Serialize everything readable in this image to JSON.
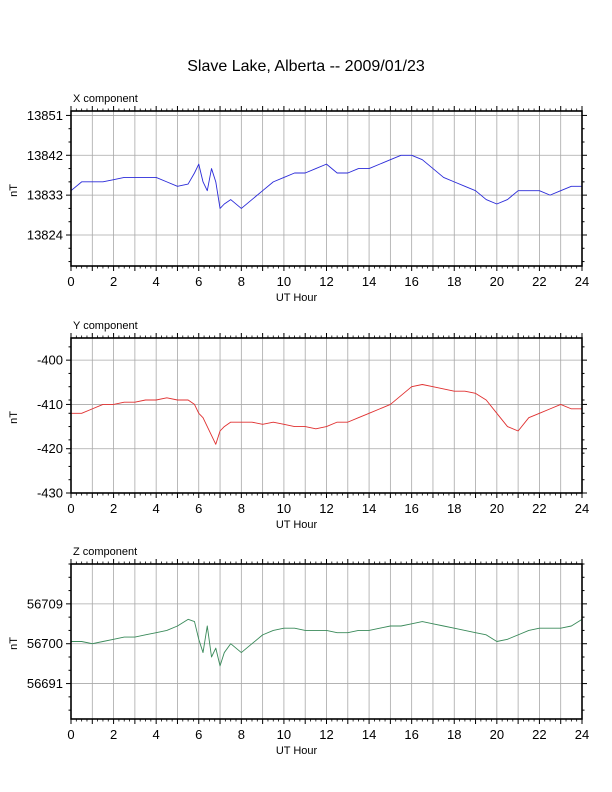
{
  "title": "Slave Lake, Alberta -- 2009/01/23",
  "chart_data": [
    {
      "type": "line",
      "panel_label": "X component",
      "xlabel": "UT Hour",
      "ylabel": "nT",
      "xlim": [
        0,
        24
      ],
      "ylim": [
        13817,
        13852
      ],
      "xticks": [
        0,
        2,
        4,
        6,
        8,
        10,
        12,
        14,
        16,
        18,
        20,
        22,
        24
      ],
      "yticks": [
        13824,
        13833,
        13842,
        13851
      ],
      "grid": true,
      "color": "#2b2bd9",
      "x": [
        0,
        0.5,
        1,
        1.5,
        2,
        2.5,
        3,
        3.5,
        4,
        4.5,
        5,
        5.5,
        5.8,
        6,
        6.2,
        6.4,
        6.6,
        6.8,
        7,
        7.2,
        7.5,
        8,
        8.5,
        9,
        9.5,
        10,
        10.5,
        11,
        11.5,
        12,
        12.5,
        13,
        13.5,
        14,
        14.5,
        15,
        15.5,
        16,
        16.5,
        17,
        17.5,
        18,
        18.5,
        19,
        19.5,
        20,
        20.5,
        21,
        21.5,
        22,
        22.5,
        23,
        23.5,
        24
      ],
      "y": [
        13834,
        13836,
        13836,
        13836,
        13836.5,
        13837,
        13837,
        13837,
        13837,
        13836,
        13835,
        13835.5,
        13838,
        13840,
        13836,
        13834,
        13839,
        13836,
        13830,
        13831,
        13832,
        13830,
        13832,
        13834,
        13836,
        13837,
        13838,
        13838,
        13839,
        13840,
        13838,
        13838,
        13839,
        13839,
        13840,
        13841,
        13842,
        13842,
        13841,
        13839,
        13837,
        13836,
        13835,
        13834,
        13832,
        13831,
        13832,
        13834,
        13834,
        13834,
        13833,
        13834,
        13835,
        13835
      ]
    },
    {
      "type": "line",
      "panel_label": "Y component",
      "xlabel": "UT Hour",
      "ylabel": "nT",
      "xlim": [
        0,
        24
      ],
      "ylim": [
        -430,
        -395
      ],
      "xticks": [
        0,
        2,
        4,
        6,
        8,
        10,
        12,
        14,
        16,
        18,
        20,
        22,
        24
      ],
      "yticks": [
        -430,
        -420,
        -410,
        -400
      ],
      "grid": true,
      "color": "#e03030",
      "x": [
        0,
        0.5,
        1,
        1.5,
        2,
        2.5,
        3,
        3.5,
        4,
        4.5,
        5,
        5.5,
        5.8,
        6,
        6.2,
        6.4,
        6.6,
        6.8,
        7,
        7.2,
        7.5,
        8,
        8.5,
        9,
        9.5,
        10,
        10.5,
        11,
        11.5,
        12,
        12.5,
        13,
        13.5,
        14,
        14.5,
        15,
        15.5,
        16,
        16.5,
        17,
        17.5,
        18,
        18.5,
        19,
        19.5,
        20,
        20.5,
        21,
        21.5,
        22,
        22.5,
        23,
        23.5,
        24
      ],
      "y": [
        -412,
        -412,
        -411,
        -410,
        -410,
        -409.5,
        -409.5,
        -409,
        -409,
        -408.5,
        -409,
        -409,
        -410,
        -412,
        -413,
        -415,
        -417,
        -419,
        -416,
        -415,
        -414,
        -414,
        -414,
        -414.5,
        -414,
        -414.5,
        -415,
        -415,
        -415.5,
        -415,
        -414,
        -414,
        -413,
        -412,
        -411,
        -410,
        -408,
        -406,
        -405.5,
        -406,
        -406.5,
        -407,
        -407,
        -407.5,
        -409,
        -412,
        -415,
        -416,
        -413,
        -412,
        -411,
        -410,
        -411,
        -411
      ]
    },
    {
      "type": "line",
      "panel_label": "Z component",
      "xlabel": "UT Hour",
      "ylabel": "nT",
      "xlim": [
        0,
        24
      ],
      "ylim": [
        56683,
        56718
      ],
      "xticks": [
        0,
        2,
        4,
        6,
        8,
        10,
        12,
        14,
        16,
        18,
        20,
        22,
        24
      ],
      "yticks": [
        56691,
        56700,
        56709
      ],
      "grid": true,
      "color": "#3a8a5a",
      "x": [
        0,
        0.5,
        1,
        1.5,
        2,
        2.5,
        3,
        3.5,
        4,
        4.5,
        5,
        5.5,
        5.8,
        6,
        6.2,
        6.4,
        6.6,
        6.8,
        7,
        7.2,
        7.5,
        8,
        8.5,
        9,
        9.5,
        10,
        10.5,
        11,
        11.5,
        12,
        12.5,
        13,
        13.5,
        14,
        14.5,
        15,
        15.5,
        16,
        16.5,
        17,
        17.5,
        18,
        18.5,
        19,
        19.5,
        20,
        20.5,
        21,
        21.5,
        22,
        22.5,
        23,
        23.5,
        24
      ],
      "y": [
        56700.5,
        56700.5,
        56700,
        56700.5,
        56701,
        56701.5,
        56701.5,
        56702,
        56702.5,
        56703,
        56704,
        56705.5,
        56705,
        56701,
        56698,
        56704,
        56697,
        56699,
        56695,
        56698,
        56700,
        56698,
        56700,
        56702,
        56703,
        56703.5,
        56703.5,
        56703,
        56703,
        56703,
        56702.5,
        56702.5,
        56703,
        56703,
        56703.5,
        56704,
        56704,
        56704.5,
        56705,
        56704.5,
        56704,
        56703.5,
        56703,
        56702.5,
        56702,
        56700.5,
        56701,
        56702,
        56703,
        56703.5,
        56703.5,
        56703.5,
        56704,
        56705.5
      ]
    }
  ]
}
